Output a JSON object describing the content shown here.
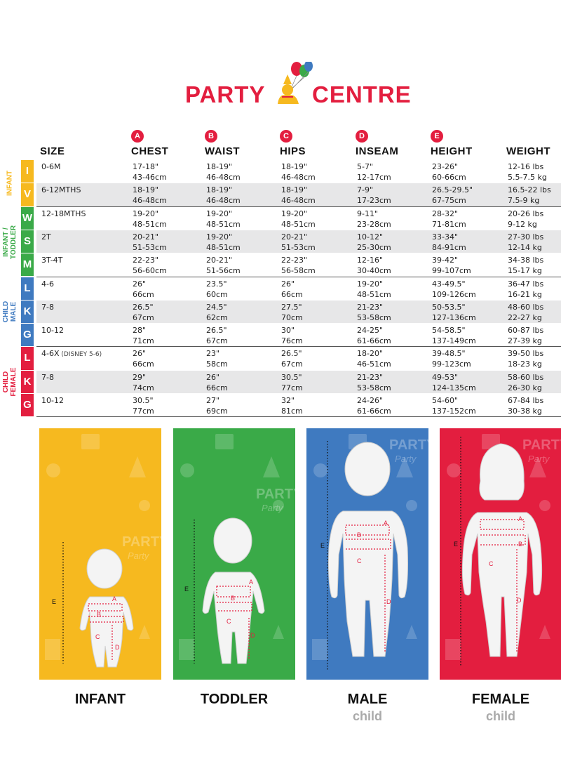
{
  "brand": {
    "name": "PARTY CENTRE"
  },
  "columns": [
    {
      "key": "size",
      "label": "SIZE",
      "badge": ""
    },
    {
      "key": "chest",
      "label": "CHEST",
      "badge": "A"
    },
    {
      "key": "waist",
      "label": "WAIST",
      "badge": "B"
    },
    {
      "key": "hips",
      "label": "HIPS",
      "badge": "C"
    },
    {
      "key": "inseam",
      "label": "INSEAM",
      "badge": "D"
    },
    {
      "key": "height",
      "label": "HEIGHT",
      "badge": "E"
    },
    {
      "key": "weight",
      "label": "WEIGHT",
      "badge": ""
    }
  ],
  "groups": [
    {
      "label": "INFANT",
      "color": "#f6b91f"
    },
    {
      "label": "INFANT / TODDLER",
      "color": "#3aaa48"
    },
    {
      "label": "CHILD MALE",
      "color": "#3f7ac0"
    },
    {
      "label": "CHILD FEMALE",
      "color": "#e31e3f"
    }
  ],
  "rows": [
    {
      "letter": "I",
      "size": "0-6M",
      "size_note": "",
      "chest": [
        "17-18\"",
        "43-46cm"
      ],
      "waist": [
        "18-19\"",
        "46-48cm"
      ],
      "hips": [
        "18-19\"",
        "46-48cm"
      ],
      "inseam": [
        "5-7\"",
        "12-17cm"
      ],
      "height": [
        "23-26\"",
        "60-66cm"
      ],
      "weight": [
        "12-16 lbs",
        "5.5-7.5 kg"
      ]
    },
    {
      "letter": "V",
      "size": "6-12MTHS",
      "size_note": "",
      "chest": [
        "18-19\"",
        "46-48cm"
      ],
      "waist": [
        "18-19\"",
        "46-48cm"
      ],
      "hips": [
        "18-19\"",
        "46-48cm"
      ],
      "inseam": [
        "7-9\"",
        "17-23cm"
      ],
      "height": [
        "26.5-29.5\"",
        "67-75cm"
      ],
      "weight": [
        "16.5-22 lbs",
        "7.5-9 kg"
      ]
    },
    {
      "letter": "W",
      "size": "12-18MTHS",
      "size_note": "",
      "chest": [
        "19-20\"",
        "48-51cm"
      ],
      "waist": [
        "19-20\"",
        "48-51cm"
      ],
      "hips": [
        "19-20\"",
        "48-51cm"
      ],
      "inseam": [
        "9-11\"",
        "23-28cm"
      ],
      "height": [
        "28-32\"",
        "71-81cm"
      ],
      "weight": [
        "20-26 lbs",
        "9-12 kg"
      ]
    },
    {
      "letter": "S",
      "size": "2T",
      "size_note": "",
      "chest": [
        "20-21\"",
        "51-53cm"
      ],
      "waist": [
        "19-20\"",
        "48-51cm"
      ],
      "hips": [
        "20-21\"",
        "51-53cm"
      ],
      "inseam": [
        "10-12\"",
        "25-30cm"
      ],
      "height": [
        "33-34\"",
        "84-91cm"
      ],
      "weight": [
        "27-30 lbs",
        "12-14 kg"
      ]
    },
    {
      "letter": "M",
      "size": "3T-4T",
      "size_note": "",
      "chest": [
        "22-23\"",
        "56-60cm"
      ],
      "waist": [
        "20-21\"",
        "51-56cm"
      ],
      "hips": [
        "22-23\"",
        "56-58cm"
      ],
      "inseam": [
        "12-16\"",
        "30-40cm"
      ],
      "height": [
        "39-42\"",
        "99-107cm"
      ],
      "weight": [
        "34-38 lbs",
        "15-17 kg"
      ]
    },
    {
      "letter": "L",
      "size": "4-6",
      "size_note": "",
      "chest": [
        "26\"",
        "66cm"
      ],
      "waist": [
        "23.5\"",
        "60cm"
      ],
      "hips": [
        "26\"",
        "66cm"
      ],
      "inseam": [
        "19-20\"",
        "48-51cm"
      ],
      "height": [
        "43-49.5\"",
        "109-126cm"
      ],
      "weight": [
        "36-47 lbs",
        "16-21 kg"
      ]
    },
    {
      "letter": "K",
      "size": "7-8",
      "size_note": "",
      "chest": [
        "26.5\"",
        "67cm"
      ],
      "waist": [
        "24.5\"",
        "62cm"
      ],
      "hips": [
        "27.5\"",
        "70cm"
      ],
      "inseam": [
        "21-23\"",
        "53-58cm"
      ],
      "height": [
        "50-53.5\"",
        "127-136cm"
      ],
      "weight": [
        "48-60 lbs",
        "22-27 kg"
      ]
    },
    {
      "letter": "G",
      "size": "10-12",
      "size_note": "",
      "chest": [
        "28\"",
        "71cm"
      ],
      "waist": [
        "26.5\"",
        "67cm"
      ],
      "hips": [
        "30\"",
        "76cm"
      ],
      "inseam": [
        "24-25\"",
        "61-66cm"
      ],
      "height": [
        "54-58.5\"",
        "137-149cm"
      ],
      "weight": [
        "60-87 lbs",
        "27-39 kg"
      ]
    },
    {
      "letter": "L",
      "size": "4-6X",
      "size_note": "(DISNEY 5-6)",
      "chest": [
        "26\"",
        "66cm"
      ],
      "waist": [
        "23\"",
        "58cm"
      ],
      "hips": [
        "26.5\"",
        "67cm"
      ],
      "inseam": [
        "18-20\"",
        "46-51cm"
      ],
      "height": [
        "39-48.5\"",
        "99-123cm"
      ],
      "weight": [
        "39-50 lbs",
        "18-23 kg"
      ]
    },
    {
      "letter": "K",
      "size": "7-8",
      "size_note": "",
      "chest": [
        "29\"",
        "74cm"
      ],
      "waist": [
        "26\"",
        "66cm"
      ],
      "hips": [
        "30.5\"",
        "77cm"
      ],
      "inseam": [
        "21-23\"",
        "53-58cm"
      ],
      "height": [
        "49-53\"",
        "124-135cm"
      ],
      "weight": [
        "58-60 lbs",
        "26-30 kg"
      ]
    },
    {
      "letter": "G",
      "size": "10-12",
      "size_note": "",
      "chest": [
        "30.5\"",
        "77cm"
      ],
      "waist": [
        "27\"",
        "69cm"
      ],
      "hips": [
        "32\"",
        "81cm"
      ],
      "inseam": [
        "24-26\"",
        "61-66cm"
      ],
      "height": [
        "54-60\"",
        "137-152cm"
      ],
      "weight": [
        "67-84 lbs",
        "30-38 kg"
      ]
    }
  ],
  "panels": [
    {
      "label": "INFANT",
      "sub": "",
      "color": "#f6b91f",
      "figure": "infant"
    },
    {
      "label": "TODDLER",
      "sub": "",
      "color": "#3aaa48",
      "figure": "toddler"
    },
    {
      "label": "MALE",
      "sub": "child",
      "color": "#3f7ac0",
      "figure": "male"
    },
    {
      "label": "FEMALE",
      "sub": "child",
      "color": "#e31e3f",
      "figure": "female"
    }
  ],
  "panel_bg_text": "PARTY",
  "panel_bg_text2": "Party",
  "measure_letters": [
    "A",
    "B",
    "C",
    "D",
    "E"
  ]
}
